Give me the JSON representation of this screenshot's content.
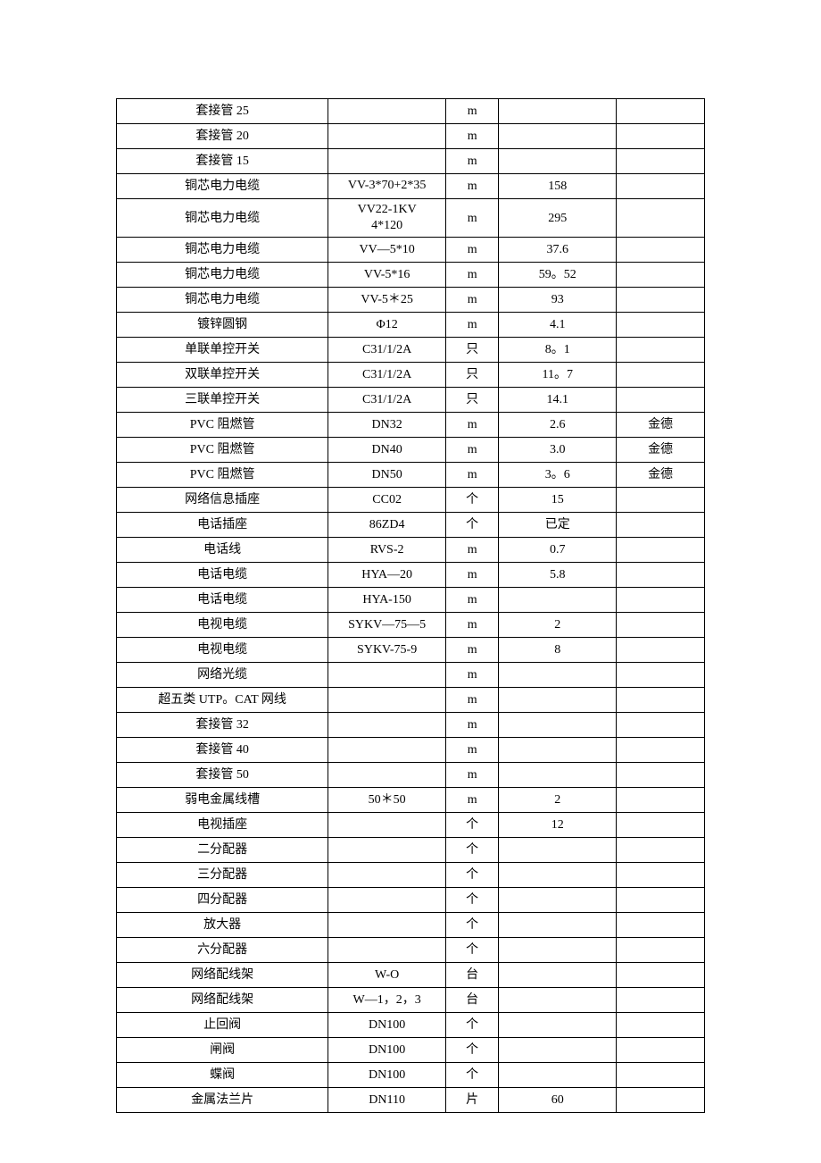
{
  "table": {
    "columns": [
      {
        "key": "name",
        "width": "36%",
        "align": "center"
      },
      {
        "key": "spec",
        "width": "20%",
        "align": "center"
      },
      {
        "key": "unit",
        "width": "9%",
        "align": "center"
      },
      {
        "key": "price",
        "width": "20%",
        "align": "center"
      },
      {
        "key": "note",
        "width": "15%",
        "align": "center"
      }
    ],
    "border_color": "#000000",
    "font_family": "SimSun",
    "font_size": 14,
    "background_color": "#ffffff",
    "rows": [
      {
        "name": "套接管 25",
        "spec": "",
        "unit": "m",
        "price": "",
        "note": ""
      },
      {
        "name": "套接管 20",
        "spec": "",
        "unit": "m",
        "price": "",
        "note": ""
      },
      {
        "name": "套接管 15",
        "spec": "",
        "unit": "m",
        "price": "",
        "note": ""
      },
      {
        "name": "铜芯电力电缆",
        "spec": "VV-3*70+2*35",
        "unit": "m",
        "price": "158",
        "note": "",
        "two_line_spec": true
      },
      {
        "name": "铜芯电力电缆",
        "spec": "VV22-1KV 4*120",
        "unit": "m",
        "price": "295",
        "note": "",
        "two_line_spec": true
      },
      {
        "name": "铜芯电力电缆",
        "spec": "VV—5*10",
        "unit": "m",
        "price": "37.6",
        "note": ""
      },
      {
        "name": "铜芯电力电缆",
        "spec": "VV-5*16",
        "unit": "m",
        "price": "59。52",
        "note": ""
      },
      {
        "name": "铜芯电力电缆",
        "spec": "VV-5＊25",
        "unit": "m",
        "price": "93",
        "note": ""
      },
      {
        "name": "镀锌圆钢",
        "spec": "Φ12",
        "unit": "m",
        "price": "4.1",
        "note": ""
      },
      {
        "name": "单联单控开关",
        "spec": "C31/1/2A",
        "unit": "只",
        "price": "8。1",
        "note": ""
      },
      {
        "name": "双联单控开关",
        "spec": "C31/1/2A",
        "unit": "只",
        "price": "11。7",
        "note": ""
      },
      {
        "name": "三联单控开关",
        "spec": "C31/1/2A",
        "unit": "只",
        "price": "14.1",
        "note": ""
      },
      {
        "name": "PVC 阻燃管",
        "spec": "DN32",
        "unit": "m",
        "price": "2.6",
        "note": "金德"
      },
      {
        "name": "PVC 阻燃管",
        "spec": "DN40",
        "unit": "m",
        "price": "3.0",
        "note": "金德"
      },
      {
        "name": "PVC 阻燃管",
        "spec": "DN50",
        "unit": "m",
        "price": "3。6",
        "note": "金德"
      },
      {
        "name": "网络信息插座",
        "spec": "CC02",
        "unit": "个",
        "price": "15",
        "note": ""
      },
      {
        "name": "电话插座",
        "spec": "86ZD4",
        "unit": "个",
        "price": "已定",
        "note": ""
      },
      {
        "name": "电话线",
        "spec": "RVS-2",
        "unit": "m",
        "price": "0.7",
        "note": ""
      },
      {
        "name": "电话电缆",
        "spec": "HYA—20",
        "unit": "m",
        "price": "5.8",
        "note": ""
      },
      {
        "name": "电话电缆",
        "spec": "HYA-150",
        "unit": "m",
        "price": "",
        "note": ""
      },
      {
        "name": "电视电缆",
        "spec": "SYKV—75—5",
        "unit": "m",
        "price": "2",
        "note": ""
      },
      {
        "name": "电视电缆",
        "spec": "SYKV-75-9",
        "unit": "m",
        "price": "8",
        "note": ""
      },
      {
        "name": "网络光缆",
        "spec": "",
        "unit": "m",
        "price": "",
        "note": ""
      },
      {
        "name": "超五类 UTP。CAT 网线",
        "spec": "",
        "unit": "m",
        "price": "",
        "note": ""
      },
      {
        "name": "套接管 32",
        "spec": "",
        "unit": "m",
        "price": "",
        "note": ""
      },
      {
        "name": "套接管 40",
        "spec": "",
        "unit": "m",
        "price": "",
        "note": ""
      },
      {
        "name": "套接管 50",
        "spec": "",
        "unit": "m",
        "price": "",
        "note": ""
      },
      {
        "name": "弱电金属线槽",
        "spec": "50＊50",
        "unit": "m",
        "price": "2",
        "note": ""
      },
      {
        "name": "电视插座",
        "spec": "",
        "unit": "个",
        "price": "12",
        "note": ""
      },
      {
        "name": "二分配器",
        "spec": "",
        "unit": "个",
        "price": "",
        "note": ""
      },
      {
        "name": "三分配器",
        "spec": "",
        "unit": "个",
        "price": "",
        "note": ""
      },
      {
        "name": "四分配器",
        "spec": "",
        "unit": "个",
        "price": "",
        "note": ""
      },
      {
        "name": "放大器",
        "spec": "",
        "unit": "个",
        "price": "",
        "note": ""
      },
      {
        "name": "六分配器",
        "spec": "",
        "unit": "个",
        "price": "",
        "note": ""
      },
      {
        "name": "网络配线架",
        "spec": "W-O",
        "unit": "台",
        "price": "",
        "note": ""
      },
      {
        "name": "网络配线架",
        "spec": "W—1，2，3",
        "unit": "台",
        "price": "",
        "note": ""
      },
      {
        "name": "止回阀",
        "spec": "DN100",
        "unit": "个",
        "price": "",
        "note": ""
      },
      {
        "name": "闸阀",
        "spec": "DN100",
        "unit": "个",
        "price": "",
        "note": ""
      },
      {
        "name": "蝶阀",
        "spec": "DN100",
        "unit": "个",
        "price": "",
        "note": ""
      },
      {
        "name": "金属法兰片",
        "spec": "DN110",
        "unit": "片",
        "price": "60",
        "note": ""
      }
    ]
  }
}
